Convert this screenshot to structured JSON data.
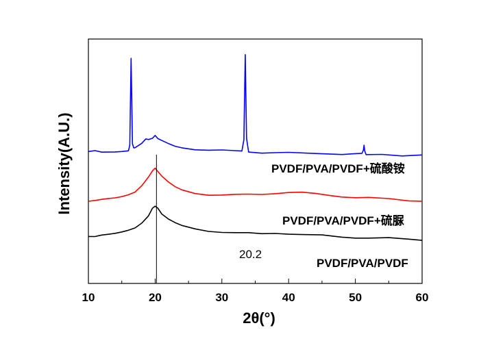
{
  "chart_data": {
    "type": "line",
    "title": "",
    "xlabel": "2θ(°)",
    "ylabel": "Intensity(A.U.)",
    "xlim": [
      10,
      60
    ],
    "xticks": [
      "10",
      "20",
      "30",
      "40",
      "50",
      "60"
    ],
    "y_ticks_shown": false,
    "grid": false,
    "annotation": {
      "text": "20.2",
      "x": 20.2
    },
    "series": [
      {
        "name": "PVDF/PVA/PVDF",
        "color": "#000000",
        "points": [
          [
            10,
            85
          ],
          [
            11,
            84
          ],
          [
            12,
            86
          ],
          [
            13,
            87
          ],
          [
            14,
            89
          ],
          [
            15,
            92
          ],
          [
            16,
            96
          ],
          [
            17,
            101
          ],
          [
            18,
            110
          ],
          [
            19,
            123
          ],
          [
            19.6,
            134
          ],
          [
            20,
            140
          ],
          [
            20.4,
            136
          ],
          [
            21,
            125
          ],
          [
            22,
            115
          ],
          [
            23,
            108
          ],
          [
            24,
            103
          ],
          [
            26,
            98
          ],
          [
            28,
            95
          ],
          [
            30,
            93
          ],
          [
            32,
            91
          ],
          [
            34,
            90
          ],
          [
            36,
            89
          ],
          [
            38,
            91
          ],
          [
            40,
            90
          ],
          [
            42,
            88
          ],
          [
            45,
            86
          ],
          [
            48,
            84
          ],
          [
            50,
            83
          ],
          [
            52,
            82
          ],
          [
            55,
            81
          ],
          [
            58,
            80
          ],
          [
            60,
            79
          ]
        ]
      },
      {
        "name": "PVDF/PVA/PVDF+硫脲",
        "color": "#ff0000",
        "points": [
          [
            10,
            147
          ],
          [
            11,
            148
          ],
          [
            12,
            150
          ],
          [
            13,
            152
          ],
          [
            14,
            154
          ],
          [
            15,
            157
          ],
          [
            16,
            161
          ],
          [
            17,
            166
          ],
          [
            18,
            177
          ],
          [
            19,
            192
          ],
          [
            19.6,
            202
          ],
          [
            20,
            207
          ],
          [
            20.4,
            203
          ],
          [
            21,
            192
          ],
          [
            22,
            181
          ],
          [
            23,
            173
          ],
          [
            24,
            168
          ],
          [
            26,
            163
          ],
          [
            28,
            160
          ],
          [
            30,
            159
          ],
          [
            32,
            159
          ],
          [
            34,
            160
          ],
          [
            36,
            161
          ],
          [
            38,
            163
          ],
          [
            40,
            164
          ],
          [
            42,
            163
          ],
          [
            44,
            161
          ],
          [
            46,
            159
          ],
          [
            48,
            157
          ],
          [
            50,
            155
          ],
          [
            52,
            154
          ],
          [
            55,
            152
          ],
          [
            58,
            150
          ],
          [
            60,
            149
          ]
        ]
      },
      {
        "name": "PVDF/PVA/PVDF+硫酸铵",
        "color": "#0000ff",
        "points": [
          [
            10,
            236
          ],
          [
            11,
            238
          ],
          [
            12,
            236
          ],
          [
            13,
            237
          ],
          [
            14,
            238
          ],
          [
            15,
            239
          ],
          [
            16,
            240
          ],
          [
            16.2,
            250
          ],
          [
            16.4,
            405
          ],
          [
            16.6,
            250
          ],
          [
            16.8,
            243
          ],
          [
            17,
            245
          ],
          [
            18,
            252
          ],
          [
            18.6,
            260
          ],
          [
            19,
            258
          ],
          [
            19.6,
            262
          ],
          [
            20,
            265
          ],
          [
            20.4,
            262
          ],
          [
            21,
            256
          ],
          [
            22,
            251
          ],
          [
            23,
            247
          ],
          [
            24,
            245
          ],
          [
            26,
            242
          ],
          [
            28,
            240
          ],
          [
            30,
            239
          ],
          [
            32,
            238
          ],
          [
            33,
            238
          ],
          [
            33.3,
            260
          ],
          [
            33.5,
            412
          ],
          [
            33.7,
            260
          ],
          [
            34,
            237
          ],
          [
            36,
            236
          ],
          [
            38,
            236
          ],
          [
            40,
            235
          ],
          [
            44,
            234
          ],
          [
            48,
            233
          ],
          [
            50,
            233
          ],
          [
            51,
            233
          ],
          [
            51.2,
            240
          ],
          [
            51.3,
            248
          ],
          [
            51.4,
            240
          ],
          [
            51.6,
            233
          ],
          [
            54,
            232
          ],
          [
            57,
            231
          ],
          [
            60,
            231
          ]
        ]
      }
    ]
  }
}
